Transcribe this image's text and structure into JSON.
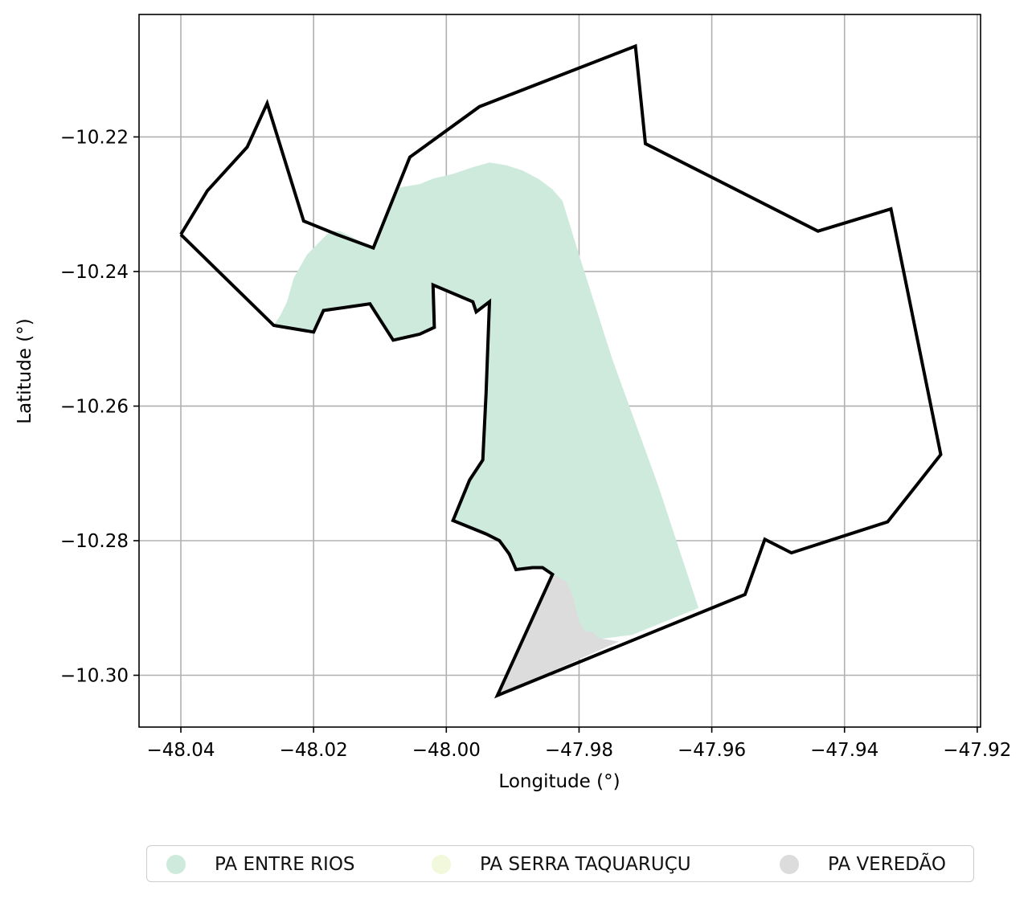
{
  "map": {
    "xlabel": "Longitude (°)",
    "ylabel": "Latitude (°)",
    "xlim": [
      -48.0463,
      -47.9195
    ],
    "ylim": [
      -10.3077,
      -10.2018
    ],
    "grid": true,
    "x_ticks": [
      {
        "value": -48.04,
        "label": "−48.04"
      },
      {
        "value": -48.02,
        "label": "−48.02"
      },
      {
        "value": -48.0,
        "label": "−48.00"
      },
      {
        "value": -47.98,
        "label": "−47.98"
      },
      {
        "value": -47.96,
        "label": "−47.96"
      },
      {
        "value": -47.94,
        "label": "−47.94"
      },
      {
        "value": -47.92,
        "label": "−47.92"
      }
    ],
    "y_ticks": [
      {
        "value": -10.22,
        "label": "−10.22"
      },
      {
        "value": -10.24,
        "label": "−10.24"
      },
      {
        "value": -10.26,
        "label": "−10.26"
      },
      {
        "value": -10.28,
        "label": "−10.28"
      },
      {
        "value": -10.3,
        "label": "−10.30"
      }
    ],
    "layers": [
      {
        "name": "PA ENTRE RIOS",
        "color": "#cdeadd",
        "coords": [
          [
            -48.026,
            -10.248
          ],
          [
            -48.025,
            -10.2465
          ],
          [
            -48.024,
            -10.2445
          ],
          [
            -48.023,
            -10.241
          ],
          [
            -48.021,
            -10.2375
          ],
          [
            -48.019,
            -10.2355
          ],
          [
            -48.0175,
            -10.234
          ],
          [
            -48.016,
            -10.234
          ],
          [
            -48.011,
            -10.2365
          ],
          [
            -48.007,
            -10.2275
          ],
          [
            -48.004,
            -10.227
          ],
          [
            -48.002,
            -10.2262
          ],
          [
            -47.999,
            -10.2255
          ],
          [
            -47.996,
            -10.2245
          ],
          [
            -47.9935,
            -10.2238
          ],
          [
            -47.991,
            -10.2242
          ],
          [
            -47.9885,
            -10.225
          ],
          [
            -47.986,
            -10.2263
          ],
          [
            -47.984,
            -10.2278
          ],
          [
            -47.9825,
            -10.2295
          ],
          [
            -47.98,
            -10.2375
          ],
          [
            -47.975,
            -10.253
          ],
          [
            -47.968,
            -10.272
          ],
          [
            -47.962,
            -10.29
          ],
          [
            -47.972,
            -10.294
          ],
          [
            -47.9785,
            -10.2948
          ],
          [
            -47.981,
            -10.293
          ],
          [
            -47.982,
            -10.2905
          ],
          [
            -47.983,
            -10.287
          ],
          [
            -47.984,
            -10.285
          ],
          [
            -47.9855,
            -10.284
          ],
          [
            -47.987,
            -10.284
          ],
          [
            -47.9895,
            -10.2843
          ],
          [
            -47.9905,
            -10.282
          ],
          [
            -47.992,
            -10.28
          ],
          [
            -47.994,
            -10.279
          ],
          [
            -47.999,
            -10.277
          ],
          [
            -47.9965,
            -10.271
          ],
          [
            -47.9945,
            -10.268
          ],
          [
            -47.994,
            -10.258
          ],
          [
            -47.9935,
            -10.2445
          ],
          [
            -47.9955,
            -10.246
          ],
          [
            -47.996,
            -10.2445
          ],
          [
            -48.002,
            -10.242
          ],
          [
            -48.0018,
            -10.2483
          ],
          [
            -48.004,
            -10.2493
          ],
          [
            -48.008,
            -10.2502
          ],
          [
            -48.0115,
            -10.2448
          ],
          [
            -48.0185,
            -10.2458
          ],
          [
            -48.02,
            -10.249
          ]
        ]
      },
      {
        "name": "PA SERRA TAQUARUÇU",
        "color": "#f1f8db",
        "coords": []
      },
      {
        "name": "PA VEREDÃO",
        "color": "#dcdcdc",
        "coords": [
          [
            -47.984,
            -10.285
          ],
          [
            -47.982,
            -10.286
          ],
          [
            -47.981,
            -10.288
          ],
          [
            -47.9805,
            -10.29
          ],
          [
            -47.98,
            -10.292
          ],
          [
            -47.979,
            -10.2935
          ],
          [
            -47.978,
            -10.2935
          ],
          [
            -47.977,
            -10.2945
          ],
          [
            -47.974,
            -10.295
          ],
          [
            -47.9923,
            -10.303
          ]
        ]
      }
    ],
    "boundary": {
      "stroke": "#000000",
      "coords": [
        [
          -48.04,
          -10.2345
        ],
        [
          -48.036,
          -10.228
        ],
        [
          -48.03,
          -10.2215
        ],
        [
          -48.027,
          -10.215
        ],
        [
          -48.0215,
          -10.2325
        ],
        [
          -48.0165,
          -10.2345
        ],
        [
          -48.011,
          -10.2365
        ],
        [
          -48.0055,
          -10.223
        ],
        [
          -47.995,
          -10.2155
        ],
        [
          -47.9715,
          -10.2065
        ],
        [
          -47.97,
          -10.221
        ],
        [
          -47.944,
          -10.234
        ],
        [
          -47.933,
          -10.2307
        ],
        [
          -47.9255,
          -10.2672
        ],
        [
          -47.9335,
          -10.2772
        ],
        [
          -47.948,
          -10.2818
        ],
        [
          -47.952,
          -10.2798
        ],
        [
          -47.955,
          -10.288
        ],
        [
          -47.9923,
          -10.303
        ],
        [
          -47.984,
          -10.285
        ],
        [
          -47.9855,
          -10.284
        ],
        [
          -47.987,
          -10.284
        ],
        [
          -47.9895,
          -10.2843
        ],
        [
          -47.9905,
          -10.282
        ],
        [
          -47.992,
          -10.28
        ],
        [
          -47.994,
          -10.279
        ],
        [
          -47.999,
          -10.277
        ],
        [
          -47.9965,
          -10.271
        ],
        [
          -47.9945,
          -10.268
        ],
        [
          -47.994,
          -10.258
        ],
        [
          -47.9935,
          -10.2445
        ],
        [
          -47.9955,
          -10.246
        ],
        [
          -47.996,
          -10.2445
        ],
        [
          -48.002,
          -10.242
        ],
        [
          -48.0018,
          -10.2483
        ],
        [
          -48.004,
          -10.2493
        ],
        [
          -48.008,
          -10.2502
        ],
        [
          -48.0115,
          -10.2448
        ],
        [
          -48.0185,
          -10.2458
        ],
        [
          -48.02,
          -10.249
        ],
        [
          -48.026,
          -10.248
        ],
        [
          -48.04,
          -10.2345
        ]
      ]
    }
  },
  "legend": {
    "items": [
      {
        "label": "PA ENTRE RIOS",
        "color": "#cdeadd"
      },
      {
        "label": "PA SERRA TAQUARUÇU",
        "color": "#f1f8db"
      },
      {
        "label": "PA VEREDÃO",
        "color": "#dcdcdc"
      }
    ]
  }
}
